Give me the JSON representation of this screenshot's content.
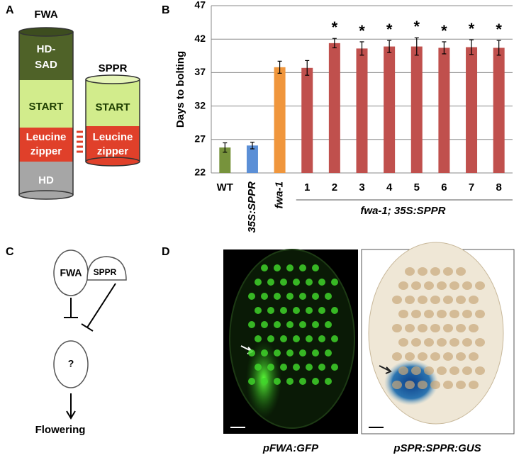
{
  "panel_labels": [
    "A",
    "B",
    "C",
    "D"
  ],
  "panel_a": {
    "fwa": {
      "name": "FWA",
      "domains": [
        [
          "HD-",
          "SAD"
        ],
        [
          "START"
        ],
        [
          "Leucine",
          "zipper"
        ],
        [
          "HD"
        ]
      ]
    },
    "sppr": {
      "name": "SPPR",
      "domains": [
        [
          "START"
        ],
        [
          "Leucine",
          "zipper"
        ]
      ]
    }
  },
  "chart_data": {
    "type": "bar",
    "y_label": "Days to bolting",
    "categories": [
      "WT",
      "35S:SPPR",
      "fwa-1",
      "1",
      "2",
      "3",
      "4",
      "5",
      "6",
      "7",
      "8"
    ],
    "values": [
      25.8,
      26.1,
      37.8,
      37.7,
      41.4,
      40.6,
      40.9,
      40.9,
      40.7,
      40.8,
      40.7
    ],
    "errors": [
      0.7,
      0.5,
      0.9,
      1.1,
      0.7,
      1.0,
      0.9,
      1.3,
      0.9,
      1.1,
      1.1
    ],
    "colors": [
      "#77933c",
      "#5b8fd6",
      "#f0963c",
      "#c0504d",
      "#c0504d",
      "#c0504d",
      "#c0504d",
      "#c0504d",
      "#c0504d",
      "#c0504d",
      "#c0504d"
    ],
    "ylim": [
      22,
      47
    ],
    "yticks": [
      22,
      27,
      32,
      37,
      42,
      47
    ],
    "grid": true,
    "annotations": [
      {
        "text": "*",
        "category": "2"
      },
      {
        "text": "*",
        "category": "3"
      },
      {
        "text": "*",
        "category": "4"
      },
      {
        "text": "*",
        "category": "5"
      },
      {
        "text": "*",
        "category": "6"
      },
      {
        "text": "*",
        "category": "7"
      },
      {
        "text": "*",
        "category": "8"
      }
    ],
    "group_label": {
      "text": "fwa-1; 35S:SPPR",
      "from": "1",
      "to": "8"
    }
  },
  "panel_c": {
    "nodes": [
      "FWA",
      "SPPR",
      "?",
      "Flowering"
    ]
  },
  "panel_d": {
    "captions": [
      "pFWA:GFP",
      "pSPR:SPPR:GUS"
    ]
  }
}
